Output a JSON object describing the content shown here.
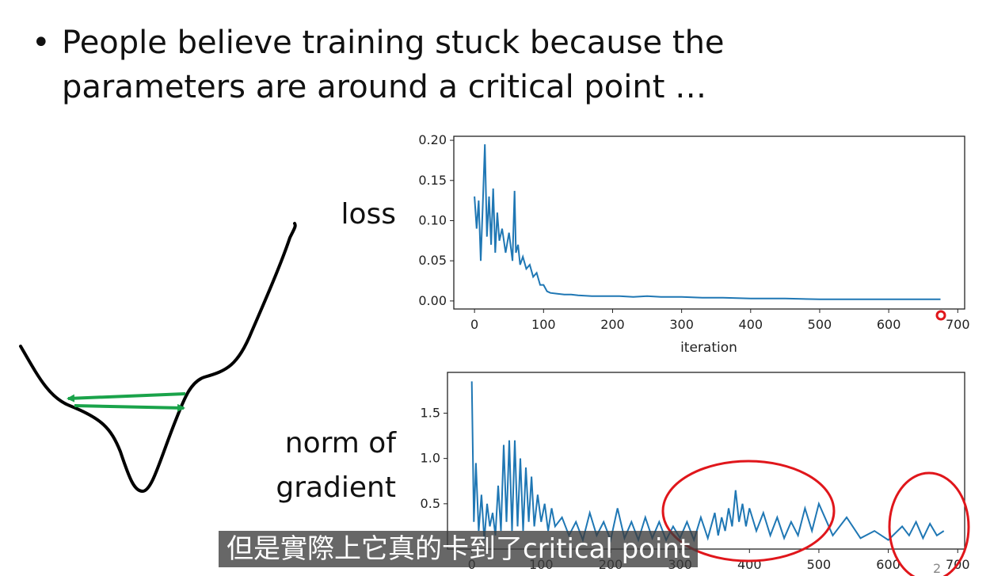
{
  "slide": {
    "bullet_symbol": "•",
    "bullet_line1": "People believe training stuck because the",
    "bullet_line2": "parameters are around a critical point …",
    "loss_label": "loss",
    "grad_label_line1": "norm of",
    "grad_label_line2": "gradient",
    "page_number": "2"
  },
  "subtitle": {
    "text": "但是實際上它真的卡到了critical point"
  },
  "colors": {
    "series": "#1f77b4",
    "arrow": "#1aa34a",
    "circle": "#e0161b",
    "cursor": "#e0161b"
  },
  "chart_data": [
    {
      "type": "line",
      "xlabel": "iteration",
      "ylabel": "",
      "xlim": [
        -30,
        710
      ],
      "ylim": [
        -0.01,
        0.205
      ],
      "x_ticks": [
        "0",
        "100",
        "200",
        "300",
        "400",
        "500",
        "600",
        "700"
      ],
      "y_ticks": [
        ".00",
        ".05",
        ".10",
        ".15",
        ".20"
      ],
      "y_tick_prefix": [
        "0",
        "0",
        "0",
        "0",
        "0"
      ],
      "y_tick_values": [
        0,
        0.05,
        0.1,
        0.15,
        0.2
      ],
      "x_tick_values": [
        0,
        100,
        200,
        300,
        400,
        500,
        600,
        700
      ],
      "series": [
        {
          "x": [
            0,
            3,
            6,
            9,
            12,
            15,
            18,
            21,
            24,
            27,
            30,
            33,
            36,
            40,
            45,
            50,
            55,
            58,
            60,
            63,
            66,
            70,
            75,
            80,
            85,
            90,
            95,
            100,
            105,
            110,
            120,
            130,
            140,
            150,
            170,
            190,
            210,
            230,
            250,
            270,
            300,
            330,
            360,
            400,
            450,
            500,
            550,
            600,
            650,
            675
          ],
          "y": [
            0.13,
            0.09,
            0.125,
            0.05,
            0.12,
            0.195,
            0.08,
            0.13,
            0.07,
            0.14,
            0.06,
            0.11,
            0.075,
            0.09,
            0.06,
            0.085,
            0.05,
            0.137,
            0.06,
            0.07,
            0.045,
            0.055,
            0.04,
            0.045,
            0.03,
            0.035,
            0.02,
            0.02,
            0.012,
            0.01,
            0.009,
            0.008,
            0.008,
            0.007,
            0.006,
            0.006,
            0.006,
            0.005,
            0.006,
            0.005,
            0.005,
            0.004,
            0.004,
            0.003,
            0.003,
            0.002,
            0.002,
            0.002,
            0.002,
            0.002
          ]
        }
      ]
    },
    {
      "type": "line",
      "xlabel": "",
      "ylabel": "",
      "xlim": [
        -35,
        710
      ],
      "ylim": [
        0,
        1.95
      ],
      "x_ticks": [
        "0",
        "100",
        "200",
        "300",
        "400",
        "500",
        "600",
        "700"
      ],
      "x_tick_values": [
        0,
        100,
        200,
        300,
        400,
        500,
        600,
        700
      ],
      "y_ticks": [
        "0.5",
        "1.0",
        "1.5"
      ],
      "y_tick_values": [
        0.5,
        1.0,
        1.5
      ],
      "series": [
        {
          "x": [
            0,
            3,
            6,
            10,
            14,
            18,
            22,
            26,
            30,
            34,
            38,
            42,
            46,
            50,
            54,
            58,
            62,
            66,
            70,
            74,
            78,
            82,
            86,
            90,
            95,
            100,
            105,
            110,
            115,
            120,
            130,
            140,
            150,
            160,
            170,
            180,
            190,
            200,
            210,
            220,
            230,
            240,
            250,
            260,
            270,
            280,
            290,
            300,
            310,
            320,
            330,
            340,
            350,
            355,
            360,
            365,
            370,
            375,
            380,
            385,
            390,
            395,
            400,
            410,
            420,
            430,
            440,
            450,
            460,
            470,
            480,
            490,
            500,
            520,
            540,
            560,
            580,
            600,
            620,
            630,
            640,
            650,
            660,
            670,
            680
          ],
          "y": [
            1.85,
            0.3,
            0.95,
            0.2,
            0.6,
            0.1,
            0.5,
            0.25,
            0.4,
            0.15,
            0.7,
            0.2,
            1.15,
            0.3,
            1.2,
            0.2,
            1.2,
            0.25,
            1.0,
            0.2,
            0.9,
            0.3,
            0.8,
            0.25,
            0.6,
            0.3,
            0.5,
            0.2,
            0.45,
            0.25,
            0.35,
            0.15,
            0.3,
            0.1,
            0.4,
            0.15,
            0.3,
            0.1,
            0.45,
            0.12,
            0.3,
            0.1,
            0.35,
            0.12,
            0.3,
            0.1,
            0.25,
            0.12,
            0.3,
            0.1,
            0.35,
            0.12,
            0.4,
            0.15,
            0.35,
            0.2,
            0.45,
            0.25,
            0.65,
            0.3,
            0.5,
            0.25,
            0.45,
            0.2,
            0.4,
            0.15,
            0.35,
            0.12,
            0.3,
            0.15,
            0.45,
            0.2,
            0.5,
            0.15,
            0.35,
            0.12,
            0.2,
            0.1,
            0.25,
            0.15,
            0.3,
            0.12,
            0.28,
            0.15,
            0.2
          ]
        }
      ]
    }
  ]
}
